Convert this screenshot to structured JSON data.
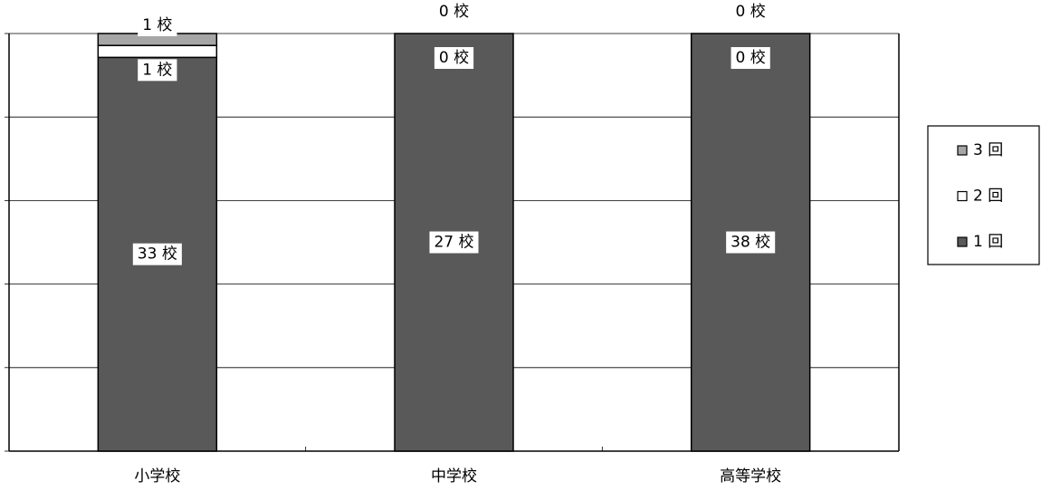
{
  "chart_data": {
    "type": "bar",
    "stacking": "percent",
    "categories": [
      "小学校",
      "中学校",
      "高等学校"
    ],
    "series": [
      {
        "name": "1 回",
        "color": "#595959",
        "values": [
          33,
          27,
          38
        ],
        "value_labels": [
          "33 校",
          "27 校",
          "38 校"
        ]
      },
      {
        "name": "2 回",
        "color": "#ffffff",
        "values": [
          1,
          0,
          0
        ],
        "value_labels": [
          "1 校",
          "0 校",
          "0 校"
        ]
      },
      {
        "name": "3 回",
        "color": "#a6a6a6",
        "values": [
          1,
          0,
          0
        ],
        "value_labels": [
          "1 校",
          "0 校",
          "0 校"
        ]
      }
    ],
    "ylim": [
      0,
      100
    ],
    "yticks": [
      0,
      20,
      40,
      60,
      80,
      100
    ],
    "grid": true,
    "legend": "right"
  }
}
